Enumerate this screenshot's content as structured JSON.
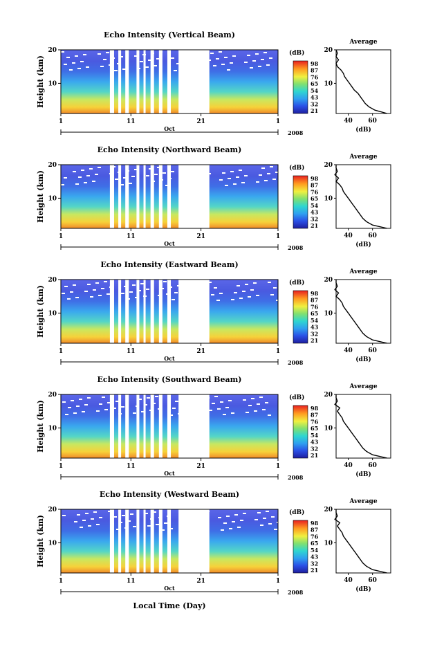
{
  "chart_data": [
    {
      "type": "heatmap",
      "title": "Echo Intensity (Vertical Beam)",
      "ylabel": "Height (km)",
      "yticks": [
        "20",
        "10"
      ],
      "ylim": [
        1,
        20
      ],
      "xticks": [
        "1",
        "11",
        "21",
        "1"
      ],
      "month": "Oct",
      "year": "2008",
      "colorbar": {
        "unit": "(dB)",
        "labels": [
          "98",
          "87",
          "76",
          "65",
          "54",
          "43",
          "32",
          "21"
        ]
      },
      "gaps": [
        [
          8,
          8.6
        ],
        [
          9.2,
          9.6
        ],
        [
          10.2,
          10.7
        ],
        [
          11.8,
          12.2
        ],
        [
          12.8,
          13.1
        ],
        [
          13.8,
          14.3
        ],
        [
          15.0,
          15.5
        ],
        [
          16.2,
          16.7
        ],
        [
          17.8,
          22.2
        ]
      ],
      "average": {
        "title": "Average",
        "xlabel": "(dB)",
        "xticks": [
          "40",
          "60"
        ],
        "yticks": [
          "20",
          "10"
        ],
        "heights": [
          1,
          2,
          3,
          4,
          5,
          6,
          7,
          8,
          9,
          10,
          11,
          12,
          13,
          14,
          15,
          16,
          17,
          18,
          19,
          20
        ],
        "values": [
          72,
          62,
          57,
          54,
          52,
          50,
          48,
          45,
          43,
          41,
          39,
          37,
          36,
          34,
          31,
          30,
          32,
          30,
          31,
          30
        ]
      }
    },
    {
      "type": "heatmap",
      "title": "Echo Intensity (Northward Beam)",
      "ylabel": "Height (km)",
      "yticks": [
        "20",
        "10"
      ],
      "ylim": [
        1,
        20
      ],
      "xticks": [
        "1",
        "11",
        "21",
        "1"
      ],
      "month": "Oct",
      "year": "2008",
      "colorbar": {
        "unit": "(dB)",
        "labels": [
          "98",
          "87",
          "76",
          "65",
          "54",
          "43",
          "32",
          "21"
        ]
      },
      "gaps": [
        [
          8,
          8.6
        ],
        [
          9.2,
          9.6
        ],
        [
          10.2,
          10.7
        ],
        [
          11.8,
          12.2
        ],
        [
          12.8,
          13.1
        ],
        [
          13.8,
          14.3
        ],
        [
          15.0,
          15.5
        ],
        [
          16.2,
          16.7
        ],
        [
          17.8,
          22.2
        ]
      ],
      "average": {
        "title": "Average",
        "xlabel": "(dB)",
        "xticks": [
          "40",
          "60"
        ],
        "yticks": [
          "20",
          "10"
        ],
        "heights": [
          1,
          2,
          3,
          4,
          5,
          6,
          7,
          8,
          9,
          10,
          11,
          12,
          13,
          14,
          15,
          16,
          17,
          18,
          19,
          20
        ],
        "values": [
          72,
          60,
          55,
          52,
          50,
          48,
          46,
          44,
          42,
          40,
          38,
          36,
          35,
          33,
          30,
          32,
          29,
          31,
          30,
          30
        ]
      }
    },
    {
      "type": "heatmap",
      "title": "Echo Intensity (Eastward Beam)",
      "ylabel": "Height (km)",
      "yticks": [
        "20",
        "10"
      ],
      "ylim": [
        1,
        20
      ],
      "xticks": [
        "1",
        "11",
        "21",
        "1"
      ],
      "month": "Oct",
      "year": "2008",
      "colorbar": {
        "unit": "(dB)",
        "labels": [
          "98",
          "87",
          "76",
          "65",
          "54",
          "43",
          "32",
          "21"
        ]
      },
      "gaps": [
        [
          8,
          8.6
        ],
        [
          9.2,
          9.6
        ],
        [
          10.2,
          10.7
        ],
        [
          11.8,
          12.2
        ],
        [
          12.8,
          13.1
        ],
        [
          13.8,
          14.3
        ],
        [
          15.0,
          15.5
        ],
        [
          16.2,
          16.7
        ],
        [
          17.8,
          22.2
        ]
      ],
      "average": {
        "title": "Average",
        "xlabel": "(dB)",
        "xticks": [
          "40",
          "60"
        ],
        "yticks": [
          "20",
          "10"
        ],
        "heights": [
          1,
          2,
          3,
          4,
          5,
          6,
          7,
          8,
          9,
          10,
          11,
          12,
          13,
          14,
          15,
          16,
          17,
          18,
          19,
          20
        ],
        "values": [
          72,
          60,
          55,
          52,
          50,
          48,
          46,
          44,
          42,
          40,
          38,
          36,
          35,
          33,
          30,
          32,
          29,
          31,
          30,
          30
        ]
      }
    },
    {
      "type": "heatmap",
      "title": "Echo Intensity (Southward Beam)",
      "ylabel": "Height (km)",
      "yticks": [
        "20",
        "10"
      ],
      "ylim": [
        1,
        20
      ],
      "xticks": [
        "1",
        "11",
        "21",
        "1"
      ],
      "month": "Oct",
      "year": "2008",
      "colorbar": {
        "unit": "(dB)",
        "labels": [
          "98",
          "87",
          "76",
          "65",
          "54",
          "43",
          "32",
          "21"
        ]
      },
      "gaps": [
        [
          8,
          8.6
        ],
        [
          9.2,
          9.6
        ],
        [
          10.2,
          10.7
        ],
        [
          11.8,
          12.2
        ],
        [
          12.8,
          13.1
        ],
        [
          13.8,
          14.3
        ],
        [
          15.0,
          15.5
        ],
        [
          16.2,
          16.7
        ],
        [
          17.8,
          22.2
        ]
      ],
      "average": {
        "title": "Average",
        "xlabel": "(dB)",
        "xticks": [
          "40",
          "60"
        ],
        "yticks": [
          "20",
          "10"
        ],
        "heights": [
          1,
          2,
          3,
          4,
          5,
          6,
          7,
          8,
          9,
          10,
          11,
          12,
          13,
          14,
          15,
          16,
          17,
          18,
          19,
          20
        ],
        "values": [
          72,
          60,
          55,
          52,
          50,
          48,
          46,
          44,
          42,
          40,
          38,
          36,
          35,
          33,
          31,
          33,
          29,
          31,
          30,
          30
        ]
      }
    },
    {
      "type": "heatmap",
      "title": "Echo Intensity (Westward Beam)",
      "ylabel": "Height (km)",
      "yticks": [
        "20",
        "10"
      ],
      "ylim": [
        1,
        20
      ],
      "xticks": [
        "1",
        "11",
        "21",
        "1"
      ],
      "month": "Oct",
      "year": "2008",
      "colorbar": {
        "unit": "(dB)",
        "labels": [
          "98",
          "87",
          "76",
          "65",
          "54",
          "43",
          "32",
          "21"
        ]
      },
      "gaps": [
        [
          8,
          8.6
        ],
        [
          9.2,
          9.6
        ],
        [
          10.2,
          10.7
        ],
        [
          11.8,
          12.2
        ],
        [
          12.8,
          13.1
        ],
        [
          13.8,
          14.3
        ],
        [
          15.0,
          15.5
        ],
        [
          16.2,
          16.7
        ],
        [
          17.8,
          22.2
        ]
      ],
      "average": {
        "title": "Average",
        "xlabel": "(dB)",
        "xticks": [
          "40",
          "60"
        ],
        "yticks": [
          "20",
          "10"
        ],
        "heights": [
          1,
          2,
          3,
          4,
          5,
          6,
          7,
          8,
          9,
          10,
          11,
          12,
          13,
          14,
          15,
          16,
          17,
          18,
          19,
          20
        ],
        "values": [
          72,
          60,
          55,
          52,
          50,
          48,
          46,
          44,
          42,
          40,
          38,
          36,
          35,
          33,
          31,
          33,
          29,
          31,
          30,
          30
        ]
      }
    }
  ],
  "xlabel": "Local Time (Day)"
}
